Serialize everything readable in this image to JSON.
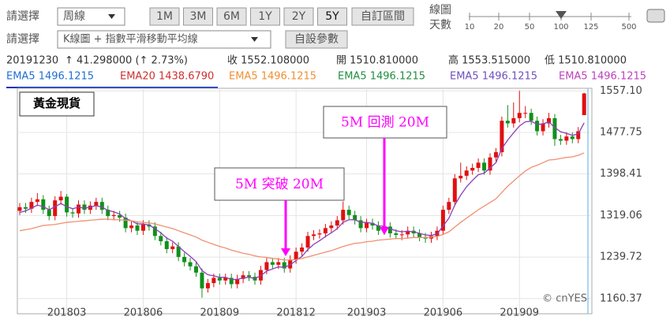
{
  "controls": {
    "row1_label": "請選擇",
    "period_select": "周線",
    "range_buttons": [
      "1M",
      "3M",
      "6M",
      "1Y",
      "2Y",
      "5Y"
    ],
    "custom_button": "自訂區間",
    "days_label_1": "線圖",
    "days_label_2": "天數",
    "slider_labels": [
      "10",
      "20",
      "50",
      "100",
      "125",
      "500"
    ],
    "row2_label": "請選擇",
    "chart_select": "K線圖 + 指數平滑移動平均線",
    "param_button": "自設參數"
  },
  "quote": {
    "date": "20191230",
    "change": "↑ 41.298000 (↑ 2.73%)",
    "close": "收 1552.108000",
    "open": "開 1510.810000",
    "high": "高 1553.515000",
    "low": "低 1510.810000"
  },
  "legend": [
    {
      "label": "EMA5 1496.1215",
      "color": "#1f6fd0"
    },
    {
      "label": "EMA20 1438.6790",
      "color": "#d03030"
    },
    {
      "label": "EMA5 1496.1215",
      "color": "#f09030"
    },
    {
      "label": "EMA5 1496.1215",
      "color": "#209040"
    },
    {
      "label": "EMA5 1496.1215",
      "color": "#7050c0"
    },
    {
      "label": "EMA5 1496.1215",
      "color": "#c040c0"
    }
  ],
  "chart_data": {
    "type": "candlestick",
    "title": "黃金現貨",
    "source": "© cnYES",
    "up_color": "#e01010",
    "down_color": "#10901a",
    "grid": true,
    "ylim": [
      1136,
      1562
    ],
    "yticks": [
      {
        "value": 1557.1,
        "label": "1557.10"
      },
      1477.75,
      1398.41,
      1319.06,
      1239.72,
      1160.37
    ],
    "categories": [
      null,
      null,
      null,
      null,
      null,
      null,
      null,
      null,
      "201803",
      null,
      null,
      null,
      null,
      null,
      null,
      null,
      null,
      null,
      null,
      null,
      null,
      "201806",
      null,
      null,
      null,
      null,
      null,
      null,
      null,
      null,
      null,
      null,
      null,
      null,
      "201809",
      null,
      null,
      null,
      null,
      null,
      null,
      null,
      null,
      null,
      null,
      null,
      null,
      "201812",
      null,
      null,
      null,
      null,
      null,
      null,
      null,
      null,
      null,
      null,
      null,
      "201903",
      null,
      null,
      null,
      null,
      null,
      null,
      null,
      null,
      null,
      null,
      null,
      null,
      "201906",
      null,
      null,
      null,
      null,
      null,
      null,
      null,
      null,
      null,
      null,
      null,
      null,
      "201909",
      null,
      null,
      null,
      null,
      null,
      null,
      null,
      null,
      null,
      null,
      null
    ],
    "series": [
      {
        "open": [
          1328,
          1335,
          1332,
          1345,
          1350,
          1330,
          1318,
          1348,
          1355,
          1325,
          1323,
          1340,
          1330,
          1338,
          1345,
          1330,
          1318,
          1320,
          1315,
          1295,
          1300,
          1290,
          1302,
          1298,
          1280,
          1270,
          1255,
          1260,
          1240,
          1230,
          1222,
          1210,
          1180,
          1190,
          1200,
          1195,
          1200,
          1188,
          1198,
          1205,
          1202,
          1195,
          1215,
          1230,
          1225,
          1230,
          1218,
          1235,
          1250,
          1258,
          1280,
          1283,
          1285,
          1295,
          1300,
          1310,
          1330,
          1320,
          1310,
          1295,
          1305,
          1300,
          1290,
          1298,
          1285,
          1282,
          1283,
          1290,
          1285,
          1278,
          1275,
          1280,
          1290,
          1330,
          1345,
          1390,
          1395,
          1405,
          1410,
          1420,
          1405,
          1430,
          1440,
          1500,
          1495,
          1505,
          1515,
          1515,
          1500,
          1480,
          1495,
          1505,
          1465,
          1462,
          1470,
          1465,
          1510.81
        ],
        "high": [
          1343,
          1343,
          1353,
          1362,
          1358,
          1338,
          1356,
          1366,
          1360,
          1333,
          1348,
          1348,
          1346,
          1353,
          1353,
          1338,
          1328,
          1328,
          1323,
          1308,
          1308,
          1310,
          1310,
          1306,
          1288,
          1278,
          1268,
          1268,
          1248,
          1238,
          1230,
          1218,
          1198,
          1208,
          1208,
          1208,
          1208,
          1206,
          1213,
          1213,
          1210,
          1223,
          1238,
          1238,
          1238,
          1238,
          1243,
          1258,
          1266,
          1288,
          1291,
          1293,
          1303,
          1308,
          1318,
          1346,
          1338,
          1328,
          1318,
          1313,
          1313,
          1308,
          1306,
          1306,
          1293,
          1291,
          1298,
          1298,
          1293,
          1286,
          1288,
          1298,
          1338,
          1353,
          1398,
          1420,
          1413,
          1418,
          1428,
          1428,
          1438,
          1448,
          1508,
          1530,
          1535,
          1557,
          1528,
          1523,
          1508,
          1503,
          1515,
          1513,
          1473,
          1478,
          1478,
          1488,
          1553.515
        ],
        "low": [
          1320,
          1324,
          1324,
          1337,
          1322,
          1310,
          1310,
          1340,
          1317,
          1315,
          1315,
          1322,
          1322,
          1330,
          1322,
          1310,
          1310,
          1307,
          1287,
          1287,
          1282,
          1282,
          1290,
          1272,
          1262,
          1247,
          1247,
          1232,
          1222,
          1214,
          1202,
          1162,
          1172,
          1182,
          1187,
          1187,
          1180,
          1180,
          1190,
          1194,
          1187,
          1187,
          1207,
          1217,
          1217,
          1210,
          1210,
          1227,
          1242,
          1250,
          1272,
          1275,
          1277,
          1287,
          1292,
          1302,
          1312,
          1302,
          1287,
          1287,
          1292,
          1282,
          1282,
          1277,
          1274,
          1272,
          1275,
          1277,
          1270,
          1267,
          1267,
          1272,
          1282,
          1322,
          1337,
          1382,
          1387,
          1397,
          1402,
          1397,
          1397,
          1422,
          1432,
          1487,
          1487,
          1497,
          1505,
          1492,
          1472,
          1472,
          1487,
          1452,
          1454,
          1454,
          1457,
          1457,
          1510.81
        ],
        "close": [
          1335,
          1332,
          1345,
          1350,
          1330,
          1318,
          1348,
          1355,
          1325,
          1323,
          1340,
          1330,
          1338,
          1345,
          1330,
          1318,
          1320,
          1315,
          1295,
          1300,
          1290,
          1302,
          1298,
          1280,
          1270,
          1255,
          1260,
          1240,
          1230,
          1222,
          1210,
          1180,
          1190,
          1200,
          1195,
          1200,
          1188,
          1198,
          1205,
          1202,
          1195,
          1215,
          1230,
          1225,
          1230,
          1218,
          1235,
          1250,
          1258,
          1280,
          1283,
          1285,
          1295,
          1300,
          1310,
          1330,
          1320,
          1310,
          1295,
          1305,
          1300,
          1290,
          1298,
          1285,
          1282,
          1283,
          1290,
          1285,
          1278,
          1275,
          1280,
          1290,
          1330,
          1345,
          1390,
          1395,
          1405,
          1410,
          1420,
          1405,
          1430,
          1440,
          1500,
          1495,
          1505,
          1515,
          1515,
          1500,
          1480,
          1495,
          1505,
          1465,
          1462,
          1470,
          1465,
          1480,
          1552.108
        ]
      },
      {
        "name": "EMA5",
        "color": "#8a3fb8",
        "values": [
          1325,
          1328,
          1333,
          1339,
          1336,
          1330,
          1336,
          1342,
          1336,
          1332,
          1335,
          1333,
          1335,
          1338,
          1335,
          1329,
          1326,
          1322,
          1313,
          1309,
          1303,
          1303,
          1301,
          1294,
          1286,
          1276,
          1270,
          1260,
          1250,
          1241,
          1231,
          1214,
          1206,
          1204,
          1201,
          1201,
          1197,
          1197,
          1200,
          1201,
          1199,
          1204,
          1213,
          1217,
          1221,
          1220,
          1225,
          1233,
          1241,
          1254,
          1264,
          1271,
          1279,
          1286,
          1294,
          1306,
          1311,
          1311,
          1306,
          1306,
          1304,
          1299,
          1299,
          1294,
          1290,
          1288,
          1289,
          1288,
          1285,
          1282,
          1281,
          1284,
          1299,
          1314,
          1339,
          1358,
          1374,
          1386,
          1397,
          1400,
          1410,
          1420,
          1447,
          1463,
          1477,
          1490,
          1498,
          1499,
          1493,
          1494,
          1498,
          1487,
          1479,
          1476,
          1472,
          1475,
          1496.1215
        ]
      },
      {
        "name": "EMA20",
        "color": "#f09070",
        "values": [
          1290,
          1292,
          1294,
          1297,
          1300,
          1301,
          1302,
          1304,
          1306,
          1307,
          1308,
          1309,
          1310,
          1311,
          1312,
          1312,
          1311,
          1311,
          1310,
          1309,
          1307,
          1306,
          1305,
          1303,
          1300,
          1297,
          1294,
          1290,
          1286,
          1282,
          1278,
          1272,
          1268,
          1264,
          1260,
          1257,
          1253,
          1250,
          1247,
          1245,
          1242,
          1240,
          1239,
          1237,
          1236,
          1234,
          1234,
          1235,
          1237,
          1240,
          1243,
          1246,
          1249,
          1252,
          1256,
          1260,
          1263,
          1266,
          1267,
          1269,
          1270,
          1272,
          1273,
          1274,
          1275,
          1275,
          1276,
          1277,
          1277,
          1277,
          1278,
          1279,
          1283,
          1288,
          1297,
          1306,
          1314,
          1322,
          1330,
          1337,
          1344,
          1351,
          1363,
          1375,
          1385,
          1395,
          1404,
          1411,
          1415,
          1420,
          1425,
          1426,
          1428,
          1430,
          1431,
          1434,
          1438.679
        ]
      }
    ],
    "annotations": [
      {
        "text": "5M 突破 20M",
        "color": "#ff00ff"
      },
      {
        "text": "5M 回測 20M",
        "color": "#ff00ff"
      }
    ]
  }
}
